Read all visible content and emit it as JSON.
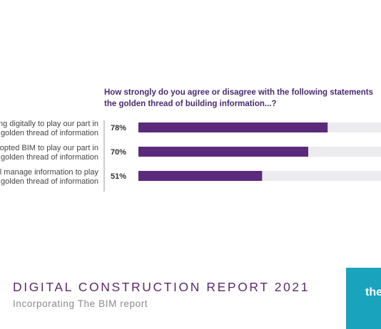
{
  "chart_data": {
    "type": "bar",
    "orientation": "horizontal",
    "title_lines": [
      "How strongly do you agree or disagree with the following statements",
      "the golden thread of building information...?"
    ],
    "categories": [
      [
        "ing digitally to play our part in",
        "golden thread of information"
      ],
      [
        "dopted BIM to play our part in",
        "golden thread of information"
      ],
      [
        "ll manage information to play",
        "golden thread of information"
      ]
    ],
    "values": [
      78,
      70,
      51
    ],
    "value_labels": [
      "78%",
      "70%",
      "51%"
    ],
    "xlim": [
      0,
      100
    ],
    "colors": {
      "bar": "#5b2a7b",
      "track": "#ececef",
      "value_text": "#333333",
      "category_text": "#444444",
      "divider": "#9a9a9a"
    }
  },
  "footer": {
    "report_title": "DIGITAL CONSTRUCTION REPORT 2021",
    "subtitle": "Incorporating The BIM report",
    "brand": "the"
  }
}
